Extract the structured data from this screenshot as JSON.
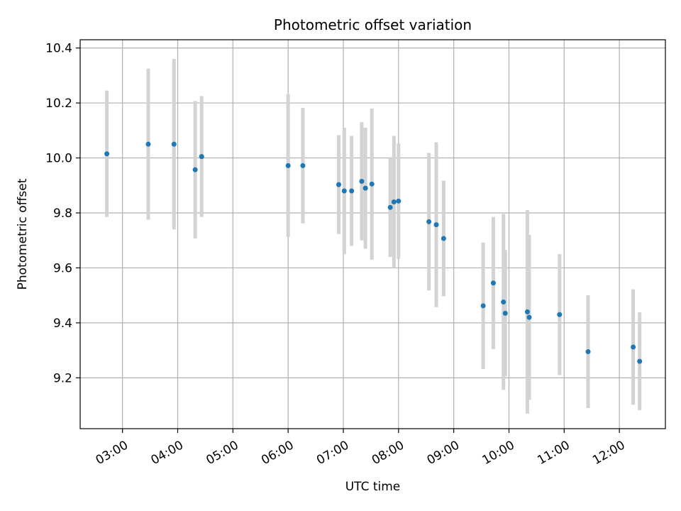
{
  "chart_data": {
    "type": "scatter",
    "title": "Photometric offset variation",
    "xlabel": "UTC time",
    "ylabel": "Photometric offset",
    "x_ticks": [
      "03:00",
      "04:00",
      "05:00",
      "06:00",
      "07:00",
      "08:00",
      "09:00",
      "10:00",
      "11:00",
      "12:00"
    ],
    "y_ticks": [
      "9.2",
      "9.4",
      "9.6",
      "9.8",
      "10.0",
      "10.2",
      "10.4"
    ],
    "xlim": [
      "02:14",
      "12:50"
    ],
    "ylim": [
      9.015,
      10.43
    ],
    "grid": true,
    "marker_color": "#1f77b4",
    "errorbar_color": "#d3d3d3",
    "points": [
      {
        "x": "02:43",
        "y": 10.015,
        "yerr": 0.23
      },
      {
        "x": "03:28",
        "y": 10.05,
        "yerr": 0.275
      },
      {
        "x": "03:56",
        "y": 10.05,
        "yerr": 0.31
      },
      {
        "x": "04:19",
        "y": 9.957,
        "yerr": 0.25
      },
      {
        "x": "04:26",
        "y": 10.005,
        "yerr": 0.22
      },
      {
        "x": "06:00",
        "y": 9.972,
        "yerr": 0.26
      },
      {
        "x": "06:16",
        "y": 9.972,
        "yerr": 0.21
      },
      {
        "x": "06:55",
        "y": 9.903,
        "yerr": 0.18
      },
      {
        "x": "07:01",
        "y": 9.88,
        "yerr": 0.23
      },
      {
        "x": "07:09",
        "y": 9.88,
        "yerr": 0.2
      },
      {
        "x": "07:20",
        "y": 9.915,
        "yerr": 0.215
      },
      {
        "x": "07:24",
        "y": 9.89,
        "yerr": 0.22
      },
      {
        "x": "07:31",
        "y": 9.905,
        "yerr": 0.275
      },
      {
        "x": "07:51",
        "y": 9.82,
        "yerr": 0.18
      },
      {
        "x": "07:55",
        "y": 9.84,
        "yerr": 0.24
      },
      {
        "x": "08:00",
        "y": 9.843,
        "yerr": 0.21
      },
      {
        "x": "08:33",
        "y": 9.768,
        "yerr": 0.25
      },
      {
        "x": "08:41",
        "y": 9.757,
        "yerr": 0.3
      },
      {
        "x": "08:49",
        "y": 9.707,
        "yerr": 0.21
      },
      {
        "x": "09:32",
        "y": 9.462,
        "yerr": 0.23
      },
      {
        "x": "09:43",
        "y": 9.545,
        "yerr": 0.24
      },
      {
        "x": "09:54",
        "y": 9.476,
        "yerr": 0.32
      },
      {
        "x": "09:56",
        "y": 9.435,
        "yerr": 0.23
      },
      {
        "x": "10:20",
        "y": 9.44,
        "yerr": 0.37
      },
      {
        "x": "10:22",
        "y": 9.42,
        "yerr": 0.3
      },
      {
        "x": "10:55",
        "y": 9.43,
        "yerr": 0.22
      },
      {
        "x": "11:26",
        "y": 9.295,
        "yerr": 0.205
      },
      {
        "x": "12:15",
        "y": 9.312,
        "yerr": 0.21
      },
      {
        "x": "12:22",
        "y": 9.26,
        "yerr": 0.178
      }
    ]
  }
}
